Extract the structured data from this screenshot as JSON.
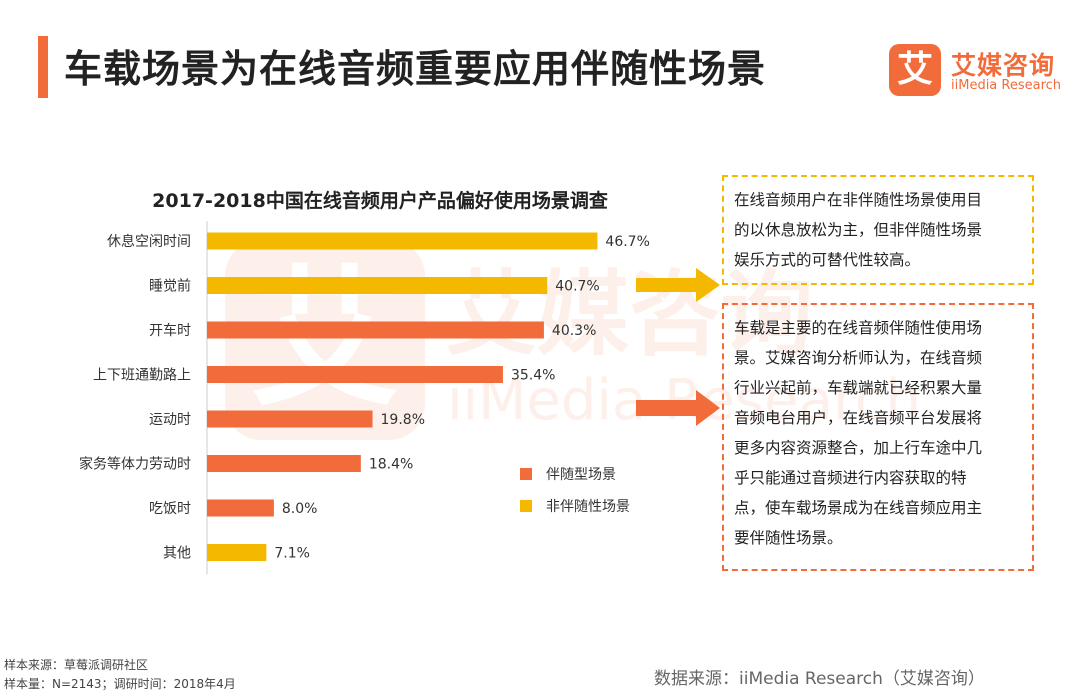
{
  "header": {
    "title": "车载场景为在线音频重要应用伴随性场景",
    "logo_mark": "艾",
    "logo_cn": "艾媒咨询",
    "logo_en": "iiMedia Research"
  },
  "watermark": {
    "mark": "艾",
    "cn": "艾媒咨询",
    "en": "iiMedia Research"
  },
  "colors": {
    "accent": "#f26b3a",
    "companion": "#f26b3a",
    "non_companion": "#f5b800"
  },
  "chart_data": {
    "type": "bar",
    "orientation": "horizontal",
    "title": "2017-2018中国在线音频用户产品偏好使用场景调查",
    "unit": "%",
    "categories": [
      "休息空闲时间",
      "睡觉前",
      "开车时",
      "上下班通勤路上",
      "运动时",
      "家务等体力劳动时",
      "吃饭时",
      "其他"
    ],
    "values": [
      46.7,
      40.7,
      40.3,
      35.4,
      19.8,
      18.4,
      8.0,
      7.1
    ],
    "value_labels": [
      "46.7%",
      "40.7%",
      "40.3%",
      "35.4%",
      "19.8%",
      "18.4%",
      "8.0%",
      "7.1%"
    ],
    "series_of_bar": [
      "non_companion",
      "non_companion",
      "companion",
      "companion",
      "companion",
      "companion",
      "companion",
      "non_companion"
    ],
    "xlim": [
      0,
      50
    ],
    "legend": [
      {
        "key": "companion",
        "label": "伴随型场景"
      },
      {
        "key": "non_companion",
        "label": "非伴随性场景"
      }
    ]
  },
  "notes": {
    "non_companion_lines": [
      "在线音频用户在非伴随性场景使用目",
      "的以休息放松为主，但非伴随性场景",
      "娱乐方式的可替代性较高。"
    ],
    "companion_lines": [
      "车载是主要的在线音频伴随性使用场",
      "景。艾媒咨询分析师认为，在线音频",
      "行业兴起前，车载端就已经积累大量",
      "音频电台用户，在线音频平台发展将",
      "更多内容资源整合，加上行车途中几",
      "乎只能通过音频进行内容获取的特",
      "点，使车载场景成为在线音频应用主",
      "要伴随性场景。"
    ]
  },
  "footer": {
    "sample_source": "样本来源：草莓派调研社区",
    "sample_size": "样本量：N=2143；调研时间：2018年4月",
    "data_source": "数据来源：iiMedia Research（艾媒咨询）"
  }
}
